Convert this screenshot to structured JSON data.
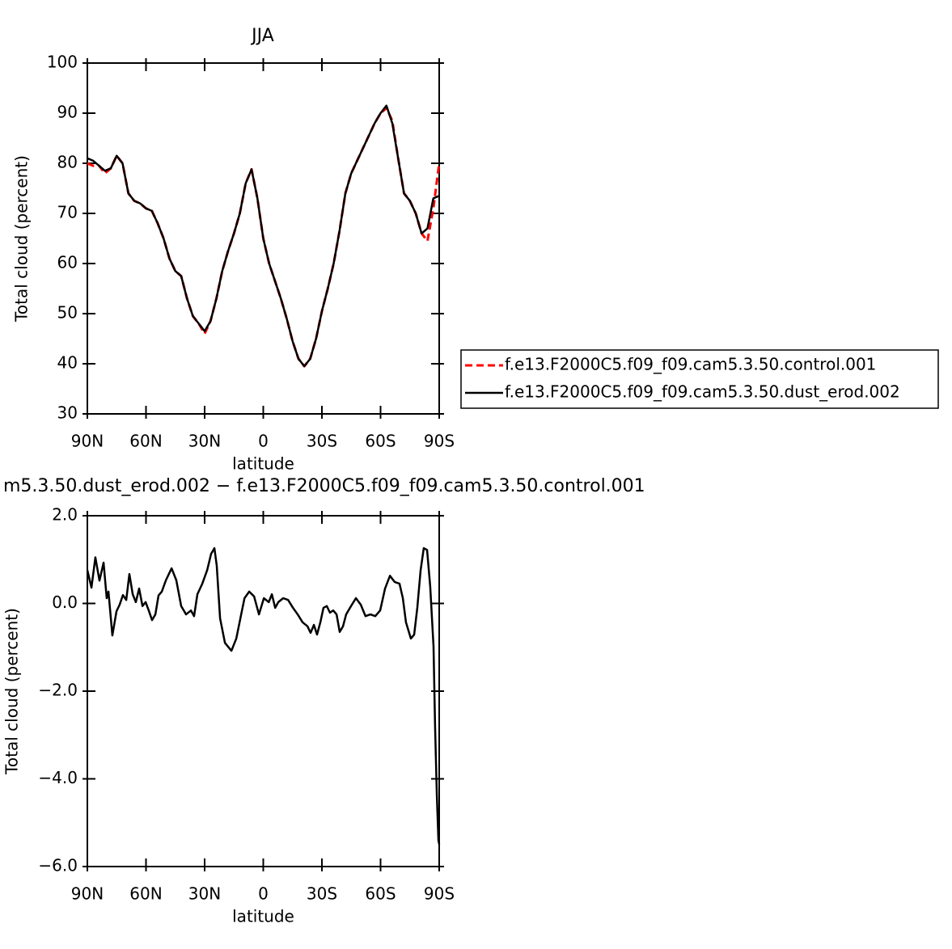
{
  "chart_data": [
    {
      "type": "line",
      "title": "JJA",
      "x_label": "latitude",
      "y_label": "Total cloud (percent)",
      "x": [
        90,
        87,
        84,
        81,
        78,
        75,
        72,
        69,
        66,
        63,
        60,
        57,
        54,
        51,
        48,
        45,
        42,
        39,
        36,
        33,
        30,
        27,
        24,
        21,
        18,
        15,
        12,
        9,
        6,
        3,
        0,
        -3,
        -6,
        -9,
        -12,
        -15,
        -18,
        -21,
        -24,
        -27,
        -30,
        -33,
        -36,
        -39,
        -42,
        -45,
        -48,
        -51,
        -54,
        -57,
        -60,
        -63,
        -66,
        -69,
        -72,
        -75,
        -78,
        -81,
        -84,
        -87,
        -90
      ],
      "series": [
        {
          "name": "f.e13.F2000C5.f09_f09.cam5.3.50.control.001",
          "color": "#ff0000",
          "dashed": true,
          "values": [
            80,
            79.5,
            79.5,
            78,
            79,
            81.5,
            80,
            74,
            72.5,
            72,
            71,
            70.5,
            68,
            65,
            61,
            58.5,
            57.5,
            53,
            49.5,
            48,
            46,
            48.5,
            53,
            58.5,
            62.5,
            66,
            70,
            76,
            78.8,
            73,
            65,
            60,
            56.5,
            53,
            49,
            44.5,
            41,
            39.5,
            41,
            45,
            50.5,
            55,
            60,
            66.5,
            74,
            78,
            80.5,
            83,
            85.5,
            88,
            90,
            91,
            88.5,
            81,
            74,
            72.5,
            70,
            66,
            64.5,
            71,
            80
          ]
        },
        {
          "name": "f.e13.F2000C5.f09_f09.cam5.3.50.dust_erod.002",
          "color": "#000000",
          "dashed": false,
          "values": [
            81,
            80.5,
            79.5,
            78.5,
            79,
            81.5,
            80,
            74,
            72.5,
            72,
            71,
            70.5,
            68,
            65,
            61,
            58.5,
            57.5,
            53,
            49.5,
            48,
            46.5,
            48.5,
            53,
            58.5,
            62.5,
            66,
            70,
            76,
            78.8,
            73,
            65,
            60,
            56.5,
            53,
            49,
            44.5,
            41,
            39.5,
            41,
            45,
            50.5,
            55,
            60,
            66.5,
            74,
            78,
            80.5,
            83,
            85.5,
            88,
            90,
            91.5,
            88,
            81,
            74,
            72.5,
            70,
            66,
            67,
            73,
            73.5
          ]
        }
      ],
      "xlim": [
        90,
        -90
      ],
      "xticks": [
        {
          "value": 90,
          "label": "90N"
        },
        {
          "value": 60,
          "label": "60N"
        },
        {
          "value": 30,
          "label": "30N"
        },
        0,
        {
          "value": -30,
          "label": "30S"
        },
        {
          "value": -60,
          "label": "60S"
        },
        {
          "value": -90,
          "label": "90S"
        }
      ],
      "ylim": [
        30,
        100
      ],
      "yticks": [
        30,
        40,
        50,
        60,
        70,
        80,
        90,
        100
      ],
      "legend": "right"
    },
    {
      "type": "line",
      "title": "m5.3.50.dust_erod.002 − f.e13.F2000C5.f09_f09.cam5.3.50.control.001",
      "x_label": "latitude",
      "y_label": "Total cloud (percent)",
      "x": [
        90,
        87.9,
        85.9,
        83.8,
        81.7,
        80.1,
        79.2,
        77.2,
        75.1,
        73.5,
        71.8,
        70.1,
        68.5,
        66.8,
        65.2,
        63.5,
        61.8,
        60.2,
        58.6,
        56.9,
        55.2,
        53.6,
        51.9,
        49.8,
        46.9,
        44.5,
        42,
        39.5,
        37,
        35.4,
        33.7,
        31.2,
        28.7,
        26.7,
        25,
        23.8,
        22.1,
        19.6,
        16.3,
        13.8,
        11.3,
        9.6,
        7.2,
        4.7,
        2.2,
        -0.3,
        -2.8,
        -4.4,
        -6.1,
        -7.7,
        -10.2,
        -12.7,
        -15.2,
        -17.6,
        -20.1,
        -22.6,
        -24.2,
        -25.9,
        -27.5,
        -29.2,
        -30.8,
        -32.5,
        -34.1,
        -35.8,
        -37.5,
        -39.1,
        -40.8,
        -42.4,
        -44.9,
        -47.4,
        -49.9,
        -52.3,
        -54.8,
        -57.3,
        -59.8,
        -62.3,
        -64.8,
        -67.2,
        -69.7,
        -71.4,
        -73,
        -75.5,
        -77.2,
        -78.8,
        -80.5,
        -82.1,
        -83.8,
        -85.4,
        -87.1,
        -87.9,
        -88.8,
        -89.6,
        -90
      ],
      "series": [
        {
          "color": "#000000",
          "dashed": false,
          "values": [
            0.76,
            0.36,
            1.05,
            0.52,
            0.93,
            0.12,
            0.27,
            -0.73,
            -0.18,
            -0.03,
            0.19,
            0.08,
            0.67,
            0.21,
            0.03,
            0.34,
            -0.06,
            0.03,
            -0.16,
            -0.38,
            -0.25,
            0.18,
            0.27,
            0.53,
            0.8,
            0.53,
            -0.06,
            -0.25,
            -0.16,
            -0.29,
            0.21,
            0.45,
            0.76,
            1.13,
            1.26,
            0.86,
            -0.34,
            -0.9,
            -1.08,
            -0.8,
            -0.25,
            0.12,
            0.27,
            0.16,
            -0.25,
            0.12,
            0.03,
            0.21,
            -0.1,
            0.03,
            0.12,
            0.08,
            -0.1,
            -0.25,
            -0.43,
            -0.52,
            -0.67,
            -0.49,
            -0.71,
            -0.43,
            -0.1,
            -0.06,
            -0.21,
            -0.16,
            -0.25,
            -0.65,
            -0.52,
            -0.25,
            -0.06,
            0.12,
            -0.03,
            -0.29,
            -0.25,
            -0.29,
            -0.16,
            0.34,
            0.63,
            0.49,
            0.45,
            0.12,
            -0.43,
            -0.8,
            -0.71,
            -0.1,
            0.76,
            1.26,
            1.22,
            0.39,
            -0.98,
            -2.82,
            -4.38,
            -5.4,
            -5.49
          ]
        }
      ],
      "xlim": [
        90,
        -90
      ],
      "xticks": [
        {
          "value": 90,
          "label": "90N"
        },
        {
          "value": 60,
          "label": "60N"
        },
        {
          "value": 30,
          "label": "30N"
        },
        0,
        {
          "value": -30,
          "label": "30S"
        },
        {
          "value": -60,
          "label": "60S"
        },
        {
          "value": -90,
          "label": "90S"
        }
      ],
      "ylim": [
        -6,
        2
      ],
      "yticks": [
        {
          "value": -6,
          "label": "−6.0"
        },
        {
          "value": -4,
          "label": "−4.0"
        },
        {
          "value": -2,
          "label": "−2.0"
        },
        {
          "value": 0,
          "label": "0.0"
        },
        {
          "value": 2,
          "label": "2.0"
        }
      ]
    }
  ]
}
